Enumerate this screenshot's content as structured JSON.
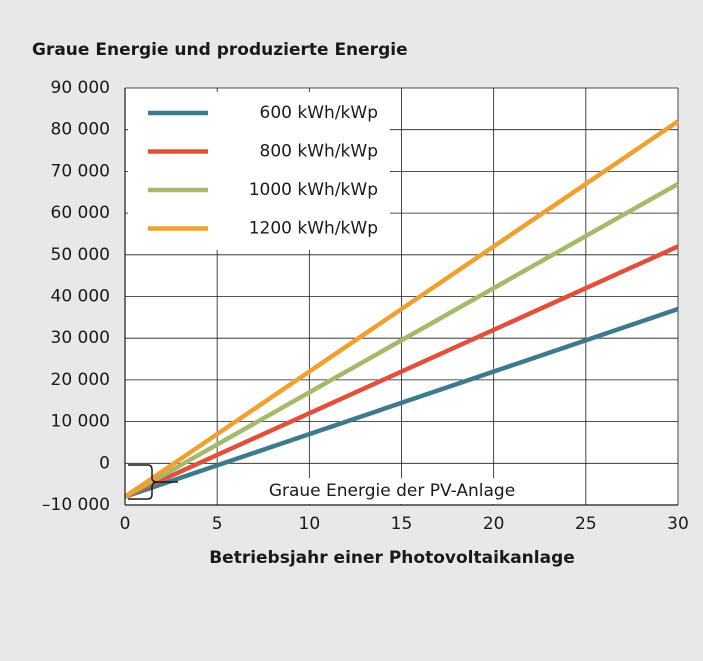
{
  "chart_data": {
    "type": "line",
    "title": "Graue Energie und produzierte Energie",
    "x_label": "Betriebsjahr einer Photovoltaikanlage",
    "annotation": "Graue Energie der PV-Anlage",
    "x": [
      0,
      30
    ],
    "series": [
      {
        "name": "600 kWh/kWp",
        "color": "#3d7a8c",
        "values": [
          -8000,
          37000
        ]
      },
      {
        "name": "800 kWh/kWp",
        "color": "#e0503a",
        "values": [
          -8000,
          52000
        ]
      },
      {
        "name": "1000 kWh/kWp",
        "color": "#a4b96a",
        "values": [
          -8000,
          67000
        ]
      },
      {
        "name": "1200 kWh/kWp",
        "color": "#f0a030",
        "values": [
          -8000,
          82000
        ]
      }
    ],
    "xlim": [
      0,
      30
    ],
    "xticks": [
      0,
      5,
      10,
      15,
      20,
      25,
      30
    ],
    "ylim": [
      -10000,
      90000
    ],
    "yticks": [
      {
        "value": -10000,
        "label": "–10 000"
      },
      0,
      {
        "value": 10000,
        "label": "10 000"
      },
      {
        "value": 20000,
        "label": "20 000"
      },
      {
        "value": 30000,
        "label": "30 000"
      },
      {
        "value": 40000,
        "label": "40 000"
      },
      {
        "value": 50000,
        "label": "50 000"
      },
      {
        "value": 60000,
        "label": "60 000"
      },
      {
        "value": 70000,
        "label": "70 000"
      },
      {
        "value": 80000,
        "label": "80 000"
      },
      {
        "value": 90000,
        "label": "90 000"
      }
    ],
    "grid": true,
    "legend": "upper left"
  }
}
